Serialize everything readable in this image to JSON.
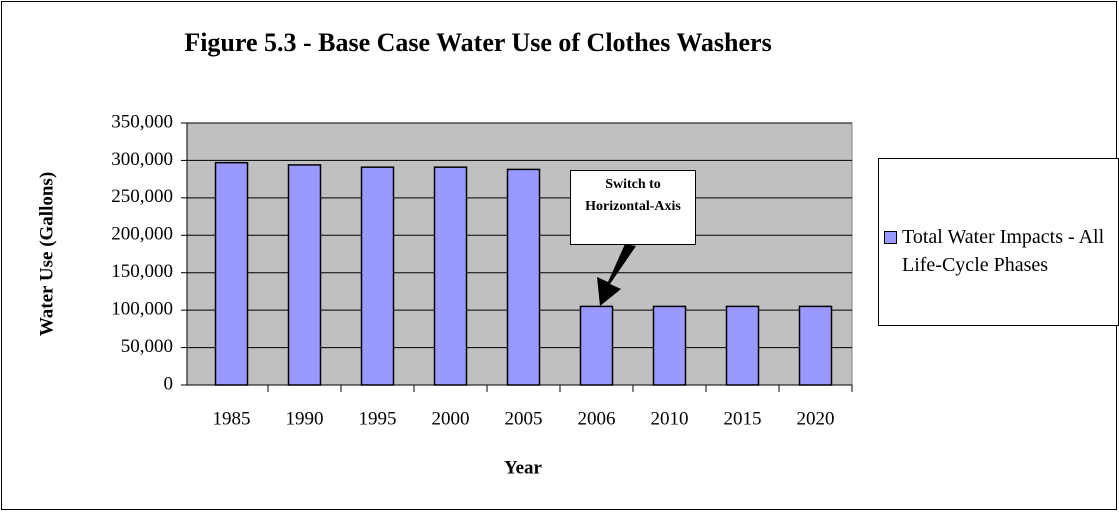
{
  "chart_data": {
    "type": "bar",
    "title": "Figure 5.3 - Base Case Water Use of Clothes Washers",
    "x_label": "Year",
    "y_label": "Water Use (Gallons)",
    "categories": [
      "1985",
      "1990",
      "1995",
      "2000",
      "2005",
      "2006",
      "2010",
      "2015",
      "2020"
    ],
    "series": [
      {
        "name": "Total Water Impacts - All Life-Cycle Phases",
        "color": "#9999ff",
        "values": [
          297000,
          294000,
          291000,
          291000,
          288000,
          105000,
          105000,
          105000,
          105000
        ]
      }
    ],
    "ylim": [
      0,
      350000
    ],
    "yticks": [
      0,
      {
        "value": 50000,
        "label": "50,000"
      },
      {
        "value": 100000,
        "label": "100,000"
      },
      {
        "value": 150000,
        "label": "150,000"
      },
      {
        "value": 200000,
        "label": "200,000"
      },
      {
        "value": 250000,
        "label": "250,000"
      },
      {
        "value": 300000,
        "label": "300,000"
      },
      {
        "value": 350000,
        "label": "350,000"
      }
    ],
    "grid": true,
    "legend": "right",
    "annotation": "Switch to Horizontal-Axis"
  }
}
